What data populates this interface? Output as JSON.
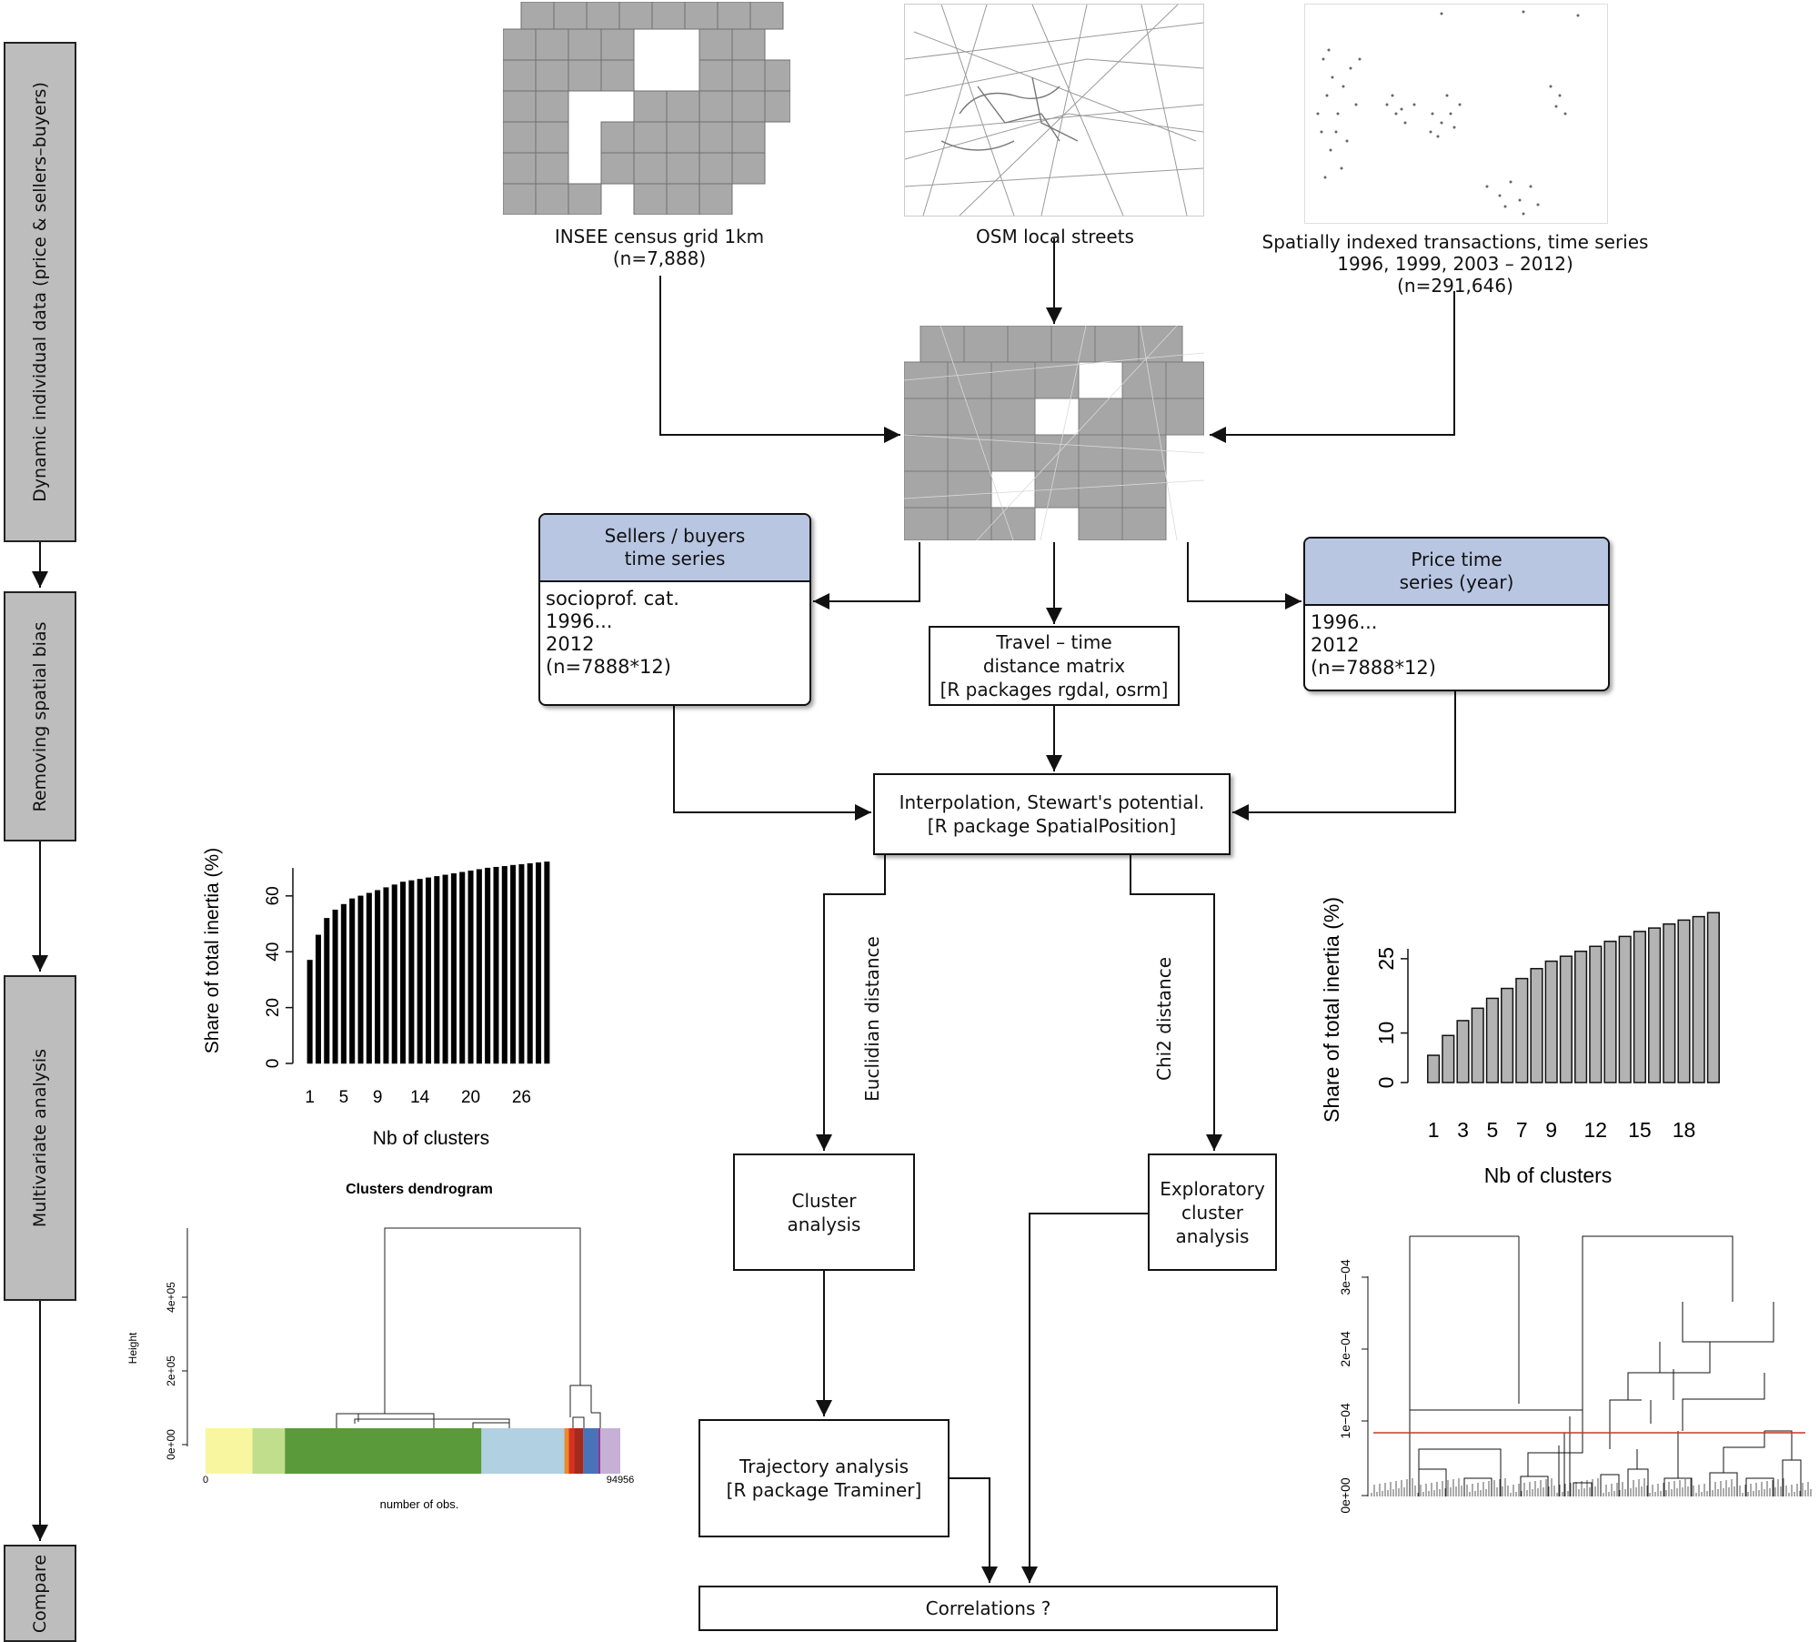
{
  "stages": [
    {
      "id": "dynamic",
      "label": "Dynamic individual data (price & sellers–buyers)"
    },
    {
      "id": "spatial",
      "label": "Removing spatial bias"
    },
    {
      "id": "multivariate",
      "label": "Multivariate analysis"
    },
    {
      "id": "compare",
      "label": "Compare"
    }
  ],
  "inputs": {
    "insee": "INSEE census grid 1km\n(n=7,888)",
    "osm": "OSM local streets",
    "transactions": "Spatially indexed transactions, time series\n1996, 1999, 2003 – 2012)\n(n=291,646)"
  },
  "sellers_box": {
    "header": "Sellers / buyers\ntime series",
    "body": "socioprof. cat.\n1996...\n2012\n(n=7888*12)"
  },
  "price_box": {
    "header": "Price time\nseries (year)",
    "body": "1996...\n2012\n(n=7888*12)"
  },
  "travel_box": "Travel – time\ndistance matrix\n[R packages rgdal, osrm]",
  "interp_box": "Interpolation, Stewart's potential.\n[R package SpatialPosition]",
  "euclid_label": "Euclidian distance",
  "chi2_label": "Chi2 distance",
  "cluster_box": "Cluster\nanalysis",
  "explor_box": "Exploratory\ncluster\nanalysis",
  "traj_box": "Trajectory analysis\n[R package Traminer]",
  "corr_box": "Correlations ?",
  "chart_data": [
    {
      "type": "bar",
      "title": "",
      "ylabel": "Share of total inertia (%)",
      "xlabel": "Nb of clusters",
      "x": [
        1,
        2,
        3,
        4,
        5,
        6,
        7,
        8,
        9,
        10,
        11,
        12,
        13,
        14,
        15,
        16,
        17,
        18,
        19,
        20,
        21,
        22,
        23,
        24,
        25,
        26,
        27,
        28,
        29
      ],
      "values": [
        37,
        46,
        52,
        55,
        57,
        59,
        60,
        61,
        62,
        63,
        64,
        65,
        65.5,
        66,
        66.5,
        67,
        67.5,
        68,
        68.5,
        69,
        69.5,
        70,
        70.3,
        70.6,
        71,
        71.3,
        71.6,
        71.9,
        72.2
      ],
      "xticks": [
        "1",
        "5",
        "9",
        "14",
        "20",
        "26"
      ],
      "yticks": [
        "0",
        "20",
        "40",
        "60"
      ],
      "ylim": [
        0,
        72
      ]
    },
    {
      "type": "bar",
      "title": "",
      "ylabel": "Share of total inertia (%)",
      "xlabel": "Nb of clusters",
      "x": [
        1,
        2,
        3,
        4,
        5,
        6,
        7,
        8,
        9,
        10,
        11,
        12,
        13,
        14,
        15,
        16,
        17,
        18,
        19,
        20
      ],
      "values": [
        5.5,
        9.5,
        12.5,
        15,
        17,
        19,
        21,
        23,
        24.5,
        25.5,
        26.5,
        27.5,
        28.5,
        29.5,
        30.5,
        31.2,
        32,
        32.8,
        33.5,
        34.3
      ],
      "xticks": [
        "1",
        "3",
        "5",
        "7",
        "9",
        "12",
        "15",
        "18"
      ],
      "yticks": [
        "0",
        "10",
        "25"
      ],
      "ylim": [
        0,
        36
      ]
    }
  ],
  "dendro_left": {
    "title": "Clusters dendrogram",
    "ylabel": "Height",
    "xlabel": "number of obs.",
    "yticks": [
      "0e+00",
      "2e+05",
      "4e+05"
    ],
    "x_start": "0",
    "x_end": "94956",
    "band_colors": [
      "#f8f7a0",
      "#c1de8d",
      "#5a9a3b",
      "#b1d0e2",
      "#e88b2a",
      "#d7301f",
      "#a32a1d",
      "#4a72b8",
      "#7d3f9c",
      "#c6b0d6"
    ]
  },
  "dendro_right": {
    "yticks": [
      "0e+00",
      "1e−04",
      "2e−04",
      "3e−04"
    ],
    "cut_color": "#c0392b"
  }
}
